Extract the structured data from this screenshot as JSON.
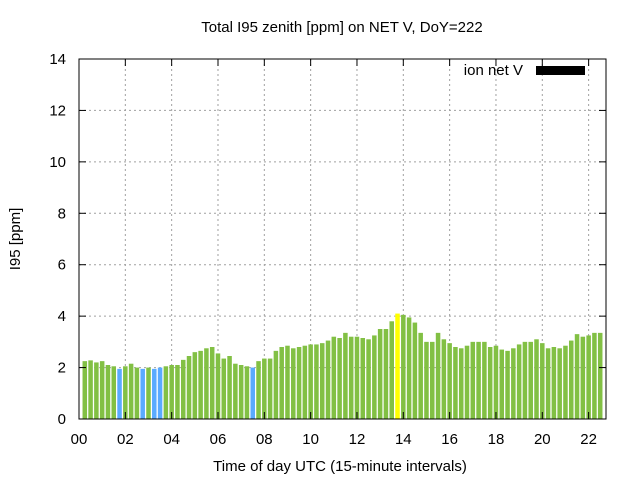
{
  "chart_data": {
    "type": "bar",
    "title": "Total I95 zenith [ppm] on NET V, DoY=222",
    "xlabel": "Time of day UTC (15-minute intervals)",
    "ylabel": "I95 [ppm]",
    "ylim": [
      0,
      14
    ],
    "xlim": [
      0,
      22.75
    ],
    "y_ticks": [
      "0",
      "2",
      "4",
      "6",
      "8",
      "10",
      "12",
      "14"
    ],
    "x_ticks": [
      "00",
      "02",
      "04",
      "06",
      "08",
      "10",
      "12",
      "14",
      "16",
      "18",
      "20",
      "22"
    ],
    "grid": true,
    "legend": {
      "label": "ion net V",
      "color": "#000000",
      "placement": "top-right"
    },
    "colors": {
      "green": "#82c044",
      "blue": "#5aaaff",
      "yellow": "#ffff00"
    },
    "x": [
      0.25,
      0.5,
      0.75,
      1.0,
      1.25,
      1.5,
      1.75,
      2.0,
      2.25,
      2.5,
      2.75,
      3.0,
      3.25,
      3.5,
      3.75,
      4.0,
      4.25,
      4.5,
      4.75,
      5.0,
      5.25,
      5.5,
      5.75,
      6.0,
      6.25,
      6.5,
      6.75,
      7.0,
      7.25,
      7.5,
      7.75,
      8.0,
      8.25,
      8.5,
      8.75,
      9.0,
      9.25,
      9.5,
      9.75,
      10.0,
      10.25,
      10.5,
      10.75,
      11.0,
      11.25,
      11.5,
      11.75,
      12.0,
      12.25,
      12.5,
      12.75,
      13.0,
      13.25,
      13.5,
      13.75,
      14.0,
      14.25,
      14.5,
      14.75,
      15.0,
      15.25,
      15.5,
      15.75,
      16.0,
      16.25,
      16.5,
      16.75,
      17.0,
      17.25,
      17.5,
      17.75,
      18.0,
      18.25,
      18.5,
      18.75,
      19.0,
      19.25,
      19.5,
      19.75,
      20.0,
      20.25,
      20.5,
      20.75,
      21.0,
      21.25,
      21.5,
      21.75,
      22.0,
      22.25,
      22.5
    ],
    "values": [
      2.25,
      2.28,
      2.2,
      2.25,
      2.1,
      2.05,
      1.95,
      2.05,
      2.15,
      2.0,
      1.95,
      2.0,
      1.95,
      2.0,
      2.05,
      2.1,
      2.1,
      2.3,
      2.45,
      2.6,
      2.65,
      2.75,
      2.8,
      2.55,
      2.35,
      2.45,
      2.15,
      2.1,
      2.05,
      2.0,
      2.25,
      2.35,
      2.35,
      2.65,
      2.8,
      2.85,
      2.75,
      2.8,
      2.85,
      2.9,
      2.9,
      2.95,
      3.05,
      3.2,
      3.15,
      3.35,
      3.2,
      3.2,
      3.15,
      3.1,
      3.25,
      3.5,
      3.5,
      3.8,
      4.1,
      4.05,
      3.95,
      3.75,
      3.35,
      3.0,
      3.0,
      3.35,
      3.1,
      2.95,
      2.8,
      2.75,
      2.85,
      3.0,
      3.0,
      3.0,
      2.8,
      2.85,
      2.7,
      2.65,
      2.75,
      2.9,
      3.0,
      3.0,
      3.1,
      2.95,
      2.75,
      2.8,
      2.75,
      2.85,
      3.05,
      3.3,
      3.2,
      3.25,
      3.35,
      3.35
    ],
    "bar_colors": [
      "green",
      "green",
      "green",
      "green",
      "green",
      "green",
      "blue",
      "green",
      "green",
      "green",
      "blue",
      "green",
      "blue",
      "blue",
      "green",
      "green",
      "green",
      "green",
      "green",
      "green",
      "green",
      "green",
      "green",
      "green",
      "green",
      "green",
      "green",
      "green",
      "green",
      "blue",
      "green",
      "green",
      "green",
      "green",
      "green",
      "green",
      "green",
      "green",
      "green",
      "green",
      "green",
      "green",
      "green",
      "green",
      "green",
      "green",
      "green",
      "green",
      "green",
      "green",
      "green",
      "green",
      "green",
      "green",
      "yellow",
      "green",
      "green",
      "green",
      "green",
      "green",
      "green",
      "green",
      "green",
      "green",
      "green",
      "green",
      "green",
      "green",
      "green",
      "green",
      "green",
      "green",
      "green",
      "green",
      "green",
      "green",
      "green",
      "green",
      "green",
      "green",
      "green",
      "green",
      "green",
      "green",
      "green",
      "green",
      "green",
      "green",
      "green",
      "green"
    ]
  }
}
